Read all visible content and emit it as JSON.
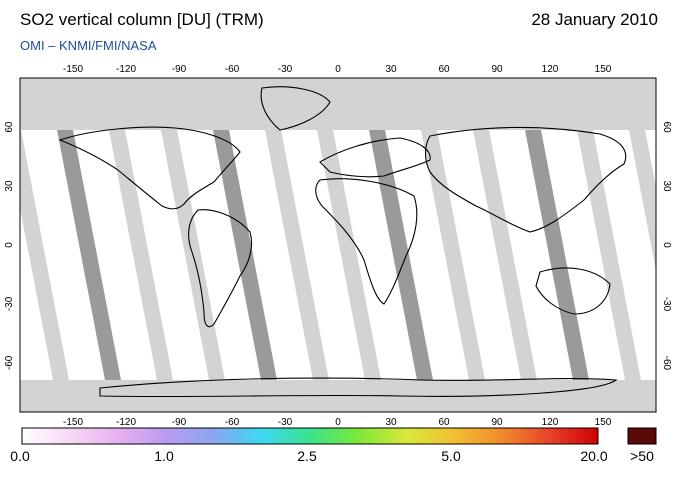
{
  "header": {
    "title": "SO2 vertical column [DU] (TRM)",
    "date": "28 January 2010",
    "credit": "OMI  –  KNMI/FMI/NASA"
  },
  "map": {
    "lon_ticks": [
      "-150",
      "-120",
      "-90",
      "-60",
      "-30",
      "0",
      "30",
      "60",
      "90",
      "120",
      "150"
    ],
    "lat_ticks": [
      "60",
      "30",
      "0",
      "-30",
      "-60"
    ],
    "colors": {
      "ocean": "#ffffff",
      "no_data": "#d3d3d3",
      "swath": "#9a9a9a",
      "coast": "#000000"
    }
  },
  "colorbar": {
    "labels": [
      "0.0",
      "1.0",
      "2.5",
      "5.0",
      "20.0"
    ],
    "overflow_label": ">50",
    "overflow_color": "#5a0808",
    "stops": [
      "#ffffff",
      "#f6d9f6",
      "#e8b0ee",
      "#b89cf0",
      "#8aa6f0",
      "#3ed8f4",
      "#3ae38c",
      "#7be83a",
      "#d8e83a",
      "#f2c033",
      "#f08a2c",
      "#e8422a",
      "#d00000"
    ]
  }
}
